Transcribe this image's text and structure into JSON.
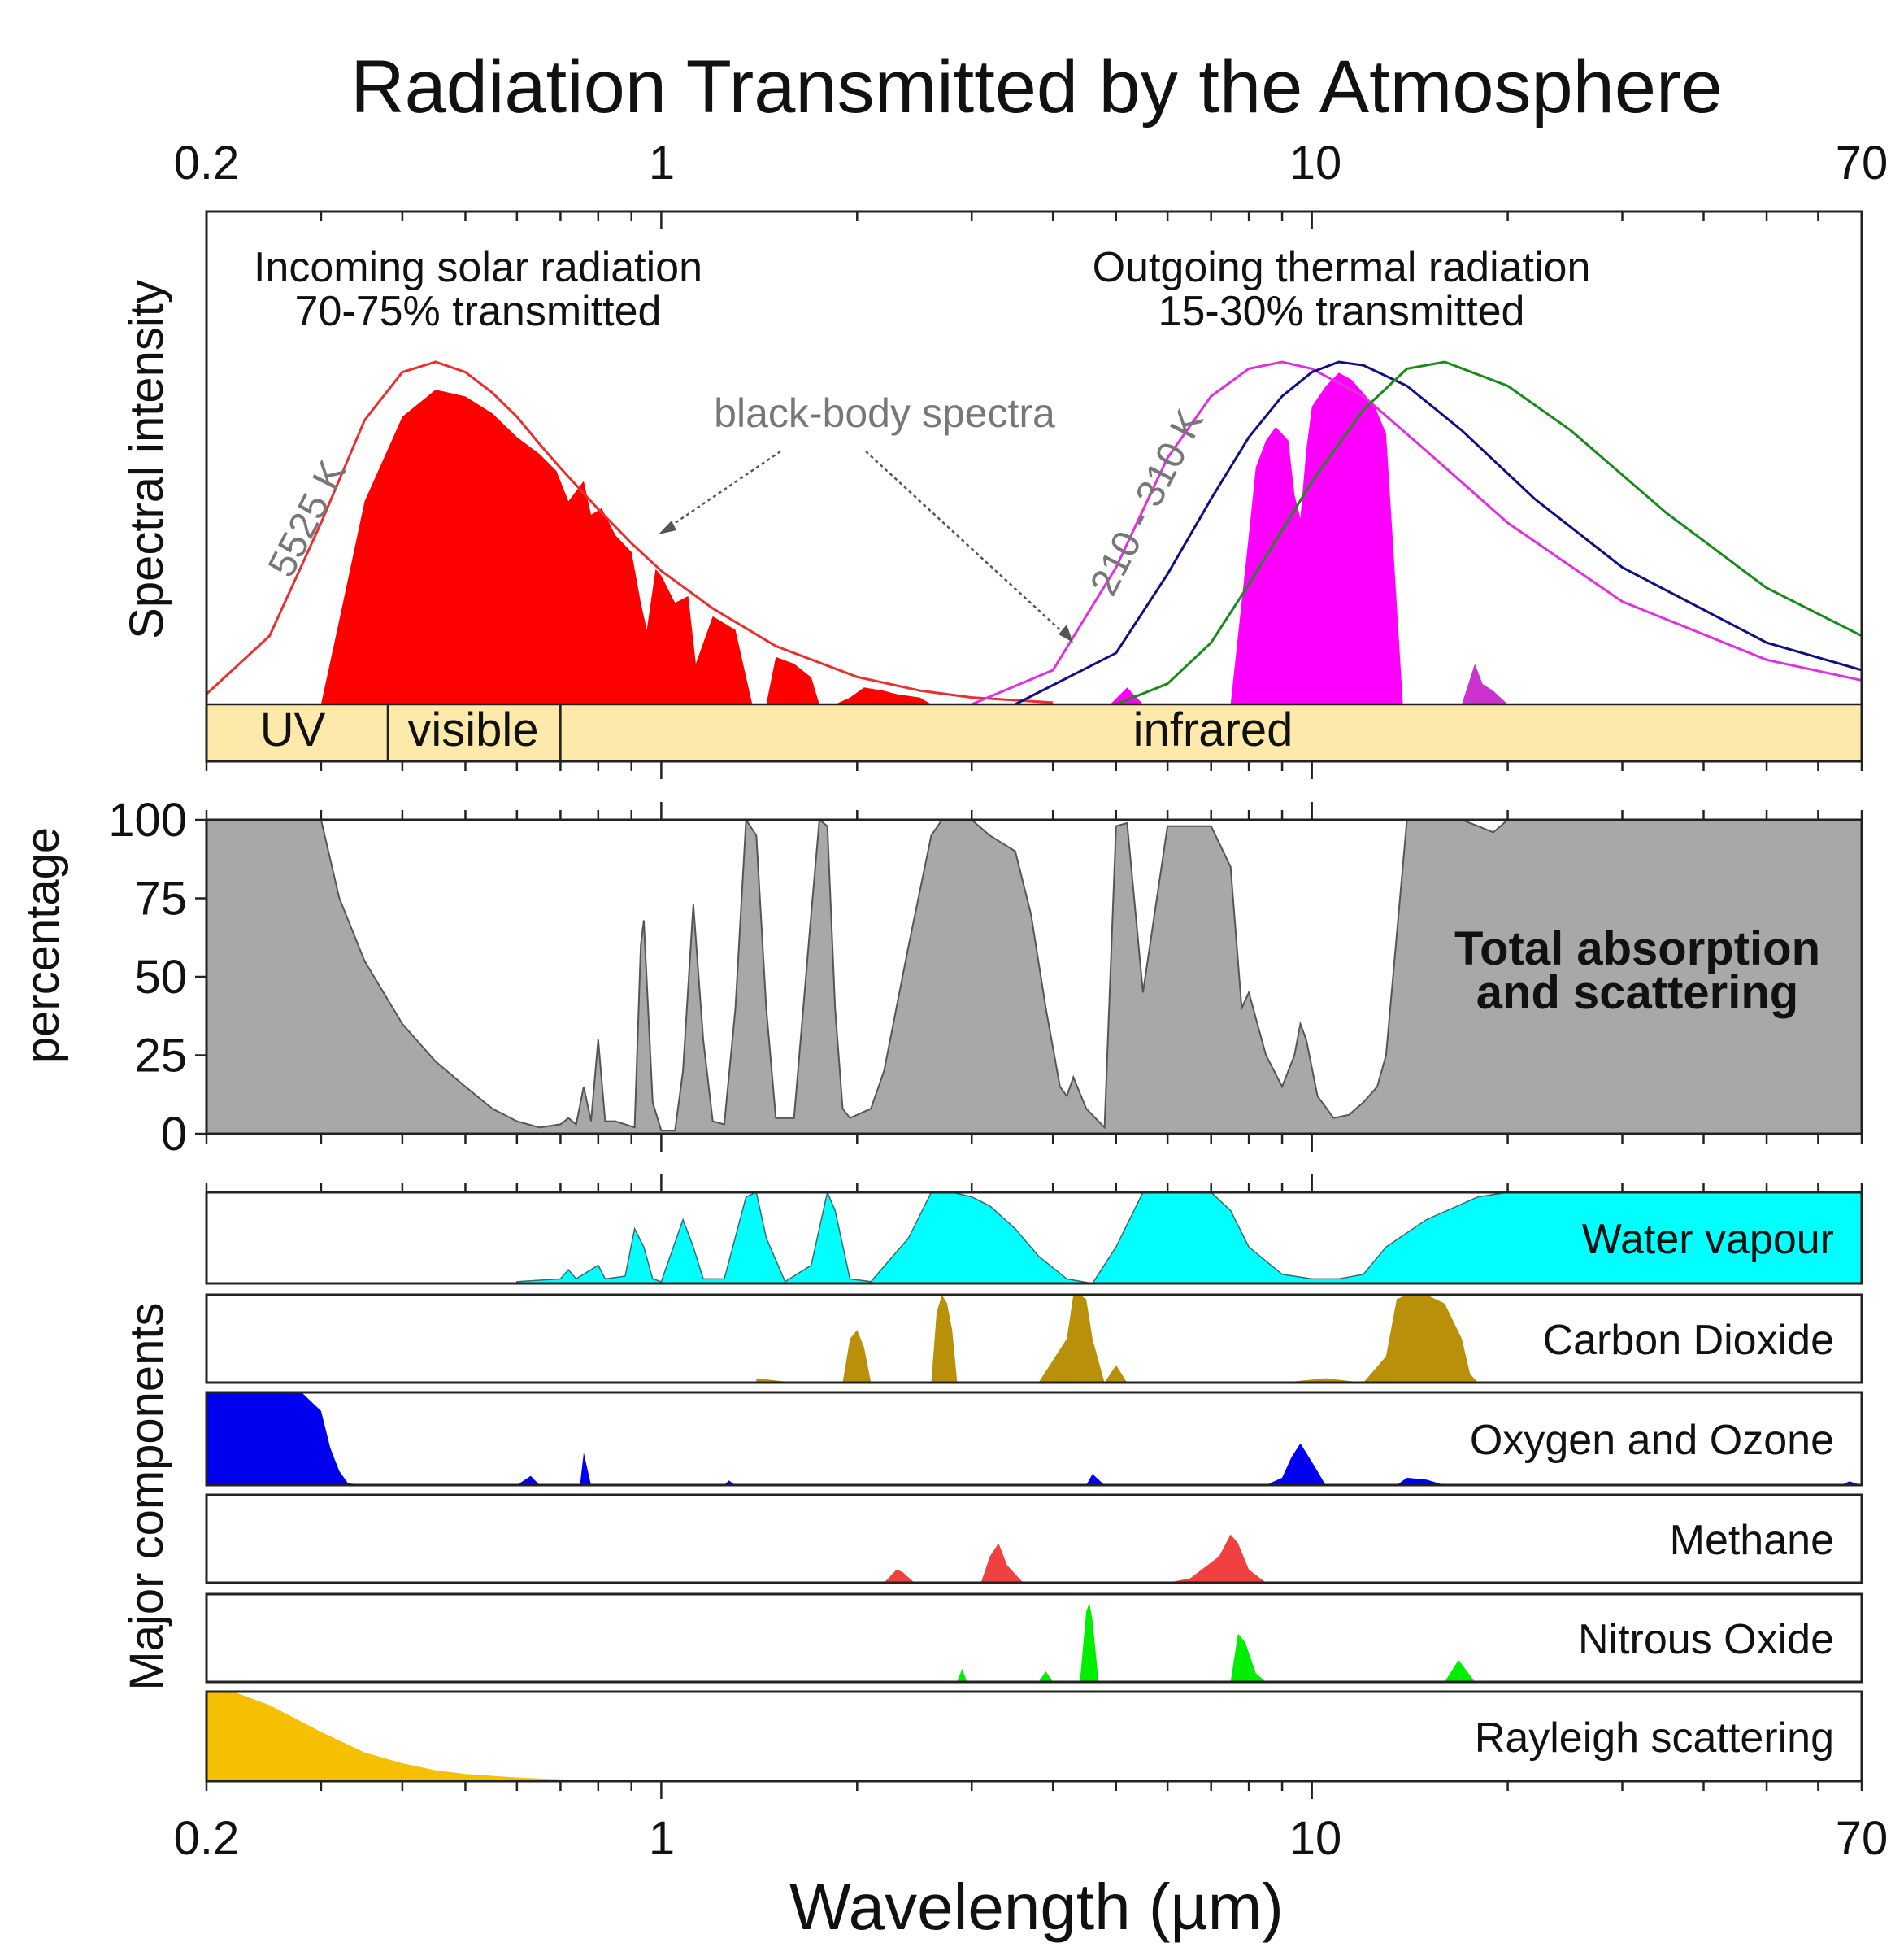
{
  "chart_data": {
    "type": "area",
    "title": "Radiation Transmitted by the Atmosphere",
    "xlabel": "Wavelength (µm)",
    "x_scale": "log",
    "xlim": [
      0.2,
      70
    ],
    "x_ticks_labeled": [
      {
        "value": 0.2,
        "label": "0.2"
      },
      {
        "value": 1,
        "label": "1"
      },
      {
        "value": 10,
        "label": "10"
      },
      {
        "value": 70,
        "label": "70"
      }
    ],
    "panels": {
      "spectral": {
        "ylabel": "Spectral intensity",
        "incoming_title": "Incoming solar radiation",
        "incoming_sub": "70-75% transmitted",
        "outgoing_title": "Outgoing thermal radiation",
        "outgoing_sub": "15-30% transmitted",
        "blackbody_label": "black-body spectra",
        "solar_temp_label": "5525 K",
        "thermal_temp_label": "210 - 310 K",
        "bands": [
          {
            "label": "UV",
            "from": 0.2,
            "to": 0.38
          },
          {
            "label": "visible",
            "from": 0.38,
            "to": 0.7
          },
          {
            "label": "infrared",
            "from": 0.7,
            "to": 70
          }
        ],
        "colors": {
          "solar": "#ff0000",
          "thermal": "#ff00ff",
          "band_fill": "#fde9aa"
        },
        "solar_blackbody_curve": {
          "name": "5525 K",
          "color": "#e83030",
          "x": [
            0.2,
            0.25,
            0.3,
            0.35,
            0.4,
            0.45,
            0.5,
            0.55,
            0.6,
            0.65,
            0.7,
            0.8,
            0.9,
            1.0,
            1.2,
            1.5,
            2,
            2.5,
            3,
            4
          ],
          "y": [
            0.03,
            0.2,
            0.53,
            0.83,
            0.97,
            1.0,
            0.97,
            0.91,
            0.84,
            0.76,
            0.69,
            0.57,
            0.47,
            0.39,
            0.28,
            0.17,
            0.08,
            0.04,
            0.02,
            0.005
          ]
        },
        "thermal_blackbody_curves": [
          {
            "color": "#e030e0",
            "x": [
              3,
              4,
              5,
              6,
              7,
              8,
              9,
              10,
              12,
              15,
              20,
              30,
              50,
              70
            ],
            "y": [
              0.0,
              0.1,
              0.4,
              0.72,
              0.9,
              0.98,
              1.0,
              0.98,
              0.9,
              0.74,
              0.53,
              0.3,
              0.13,
              0.07
            ]
          },
          {
            "color": "#101080",
            "x": [
              3.5,
              5,
              6,
              7,
              8,
              9,
              10,
              11,
              12,
              14,
              17,
              22,
              30,
              50,
              70
            ],
            "y": [
              0.0,
              0.15,
              0.38,
              0.6,
              0.78,
              0.9,
              0.97,
              1.0,
              0.99,
              0.93,
              0.8,
              0.6,
              0.4,
              0.18,
              0.1
            ]
          },
          {
            "color": "#1a8a1a",
            "x": [
              5,
              6,
              7,
              8,
              10,
              12,
              14,
              16,
              20,
              25,
              35,
              50,
              70
            ],
            "y": [
              0.0,
              0.06,
              0.18,
              0.35,
              0.65,
              0.86,
              0.98,
              1.0,
              0.93,
              0.8,
              0.56,
              0.34,
              0.2
            ]
          }
        ],
        "solar_transmitted": {
          "x": [
            0.3,
            0.32,
            0.35,
            0.4,
            0.45,
            0.5,
            0.55,
            0.6,
            0.65,
            0.69,
            0.72,
            0.76,
            0.78,
            0.81,
            0.85,
            0.9,
            0.93,
            0.95,
            0.98,
            1.0,
            1.05,
            1.1,
            1.13,
            1.2,
            1.25,
            1.3,
            1.38,
            1.45,
            1.5,
            1.6,
            1.7,
            1.75,
            1.85,
            1.95,
            2.05,
            2.2,
            2.3,
            2.5,
            2.6
          ],
          "y": [
            0.0,
            0.25,
            0.6,
            0.85,
            0.93,
            0.91,
            0.86,
            0.79,
            0.74,
            0.69,
            0.6,
            0.66,
            0.56,
            0.58,
            0.5,
            0.45,
            0.3,
            0.22,
            0.4,
            0.38,
            0.3,
            0.32,
            0.12,
            0.26,
            0.24,
            0.22,
            0.0,
            0.0,
            0.14,
            0.12,
            0.08,
            0.0,
            0.0,
            0.02,
            0.05,
            0.04,
            0.03,
            0.02,
            0.0
          ]
        },
        "thermal_transmitted": {
          "x": [
            7.5,
            8.0,
            8.2,
            8.5,
            8.8,
            9.2,
            9.4,
            9.6,
            9.8,
            10.0,
            10.5,
            11,
            11.5,
            12,
            12.5,
            13,
            13.3,
            13.8
          ],
          "y": [
            0.0,
            0.5,
            0.7,
            0.78,
            0.82,
            0.78,
            0.62,
            0.55,
            0.75,
            0.88,
            0.94,
            0.98,
            0.96,
            0.92,
            0.88,
            0.8,
            0.5,
            0.0
          ]
        }
      },
      "absorption": {
        "ylabel": "percentage",
        "label_line1": "Total absorption",
        "label_line2": "and scattering",
        "ylim": [
          0,
          100
        ],
        "y_ticks": [
          0,
          25,
          50,
          75,
          100
        ],
        "fill": "#a8a8a8",
        "x": [
          0.2,
          0.3,
          0.32,
          0.35,
          0.4,
          0.45,
          0.5,
          0.55,
          0.6,
          0.65,
          0.7,
          0.72,
          0.74,
          0.76,
          0.78,
          0.8,
          0.82,
          0.85,
          0.88,
          0.91,
          0.93,
          0.94,
          0.97,
          1.0,
          1.05,
          1.08,
          1.12,
          1.16,
          1.2,
          1.25,
          1.3,
          1.35,
          1.4,
          1.45,
          1.5,
          1.6,
          1.7,
          1.75,
          1.8,
          1.85,
          1.9,
          1.95,
          2.0,
          2.1,
          2.2,
          2.4,
          2.6,
          2.7,
          2.8,
          3.0,
          3.2,
          3.5,
          3.7,
          3.9,
          4.1,
          4.2,
          4.3,
          4.5,
          4.8,
          5.0,
          5.2,
          5.5,
          6.0,
          7.0,
          7.5,
          7.8,
          8.0,
          8.5,
          9.0,
          9.4,
          9.6,
          9.8,
          10.2,
          10.8,
          11.4,
          12.0,
          12.6,
          13.0,
          14,
          15,
          17,
          18,
          19,
          20,
          22,
          25,
          30,
          40,
          50,
          70
        ],
        "y": [
          100,
          100,
          75,
          55,
          35,
          23,
          15,
          8,
          4,
          2,
          3,
          5,
          3,
          15,
          4,
          30,
          4,
          4,
          3,
          2,
          60,
          68,
          10,
          1,
          1,
          20,
          73,
          30,
          4,
          3,
          40,
          100,
          95,
          40,
          5,
          5,
          70,
          100,
          98,
          40,
          8,
          5,
          6,
          8,
          20,
          60,
          95,
          100,
          100,
          100,
          95,
          90,
          70,
          40,
          15,
          12,
          18,
          8,
          2,
          98,
          99,
          45,
          98,
          98,
          85,
          40,
          45,
          25,
          15,
          25,
          35,
          30,
          12,
          5,
          6,
          10,
          15,
          25,
          100,
          100,
          100,
          98,
          96,
          100,
          100,
          100,
          100,
          100,
          100,
          100
        ]
      },
      "components": {
        "ylabel": "Major components",
        "items": [
          {
            "name": "Water vapour",
            "color": "#00ffff",
            "x": [
              0.6,
              0.7,
              0.72,
              0.74,
              0.8,
              0.82,
              0.88,
              0.91,
              0.94,
              0.97,
              1.0,
              1.08,
              1.12,
              1.16,
              1.25,
              1.35,
              1.4,
              1.45,
              1.55,
              1.7,
              1.8,
              1.85,
              1.95,
              2.1,
              2.4,
              2.6,
              2.8,
              3.0,
              3.2,
              3.5,
              3.8,
              4.2,
              4.6,
              5.0,
              5.5,
              6.0,
              7.0,
              7.5,
              8.0,
              9.0,
              10,
              11,
              12,
              13,
              15,
              18,
              20,
              25,
              40,
              70
            ],
            "y": [
              0.02,
              0.05,
              0.15,
              0.05,
              0.2,
              0.05,
              0.08,
              0.6,
              0.4,
              0.05,
              0.02,
              0.7,
              0.4,
              0.05,
              0.05,
              0.95,
              1.0,
              0.5,
              0.02,
              0.2,
              1.0,
              0.8,
              0.05,
              0.02,
              0.5,
              1.0,
              1.0,
              0.95,
              0.85,
              0.6,
              0.3,
              0.05,
              0.0,
              0.4,
              1.0,
              1.0,
              1.0,
              0.8,
              0.4,
              0.1,
              0.05,
              0.05,
              0.1,
              0.4,
              0.7,
              0.95,
              1.0,
              1.0,
              1.0,
              1.0
            ]
          },
          {
            "name": "Carbon Dioxide",
            "color": "#b8900a",
            "x": [
              1.4,
              1.6,
              1.9,
              1.95,
              2.0,
              2.05,
              2.1,
              2.6,
              2.65,
              2.7,
              2.75,
              2.8,
              2.85,
              3.8,
              4.2,
              4.3,
              4.4,
              4.5,
              4.6,
              4.8,
              5.0,
              5.2,
              9.0,
              10.5,
              12,
              13,
              13.5,
              14,
              15,
              16,
              17,
              17.5,
              18
            ],
            "y": [
              0.05,
              0.0,
              0.0,
              0.5,
              0.6,
              0.4,
              0.0,
              0.0,
              0.8,
              1.0,
              0.9,
              0.6,
              0.0,
              0.0,
              0.5,
              1.0,
              1.0,
              0.95,
              0.5,
              0.0,
              0.2,
              0.0,
              0.0,
              0.05,
              0.0,
              0.3,
              0.95,
              1.0,
              1.0,
              0.9,
              0.5,
              0.1,
              0.0
            ]
          },
          {
            "name": "Oxygen and Ozone",
            "color": "#0000ee",
            "x": [
              0.2,
              0.28,
              0.3,
              0.31,
              0.32,
              0.33,
              0.35,
              0.6,
              0.63,
              0.65,
              0.68,
              0.75,
              0.76,
              0.78,
              1.25,
              1.27,
              1.3,
              4.5,
              4.6,
              4.8,
              4.85,
              4.9,
              8.5,
              9.0,
              9.3,
              9.6,
              9.8,
              10.2,
              10.5,
              13.5,
              14,
              15,
              16,
              65,
              67,
              70
            ],
            "y": [
              1.0,
              1.0,
              0.8,
              0.4,
              0.15,
              0.02,
              0.0,
              0.0,
              0.1,
              0.0,
              0.0,
              0.0,
              0.35,
              0.0,
              0.0,
              0.05,
              0.0,
              0.0,
              0.12,
              0.0,
              0.0,
              0.0,
              0.0,
              0.08,
              0.3,
              0.45,
              0.35,
              0.15,
              0.0,
              0.0,
              0.08,
              0.06,
              0.0,
              0.0,
              0.04,
              0.0
            ]
          },
          {
            "name": "Methane",
            "color": "#f04040",
            "x": [
              2.2,
              2.3,
              2.35,
              2.45,
              3.1,
              3.2,
              3.3,
              3.4,
              3.6,
              6.0,
              6.5,
              7.2,
              7.5,
              7.7,
              8.0,
              8.5
            ],
            "y": [
              0.0,
              0.15,
              0.12,
              0.0,
              0.0,
              0.3,
              0.45,
              0.2,
              0.0,
              0.0,
              0.05,
              0.3,
              0.55,
              0.45,
              0.15,
              0.0
            ]
          },
          {
            "name": "Nitrous Oxide",
            "color": "#00ee00",
            "x": [
              2.85,
              2.9,
              2.95,
              3.8,
              3.9,
              4.0,
              4.4,
              4.5,
              4.55,
              4.6,
              4.7,
              7.5,
              7.7,
              7.9,
              8.2,
              8.5,
              16,
              16.8,
              17.2,
              17.8
            ],
            "y": [
              0.0,
              0.15,
              0.0,
              0.0,
              0.12,
              0.0,
              0.0,
              0.8,
              0.9,
              0.7,
              0.0,
              0.0,
              0.55,
              0.45,
              0.1,
              0.0,
              0.0,
              0.25,
              0.15,
              0.0
            ]
          },
          {
            "name": "Rayleigh scattering",
            "color": "#f5c000",
            "x": [
              0.2,
              0.22,
              0.25,
              0.3,
              0.35,
              0.4,
              0.45,
              0.5,
              0.6,
              0.7,
              0.8,
              1.0
            ],
            "y": [
              1.0,
              1.0,
              0.85,
              0.55,
              0.32,
              0.2,
              0.12,
              0.08,
              0.04,
              0.02,
              0.01,
              0.0
            ]
          }
        ]
      }
    }
  }
}
